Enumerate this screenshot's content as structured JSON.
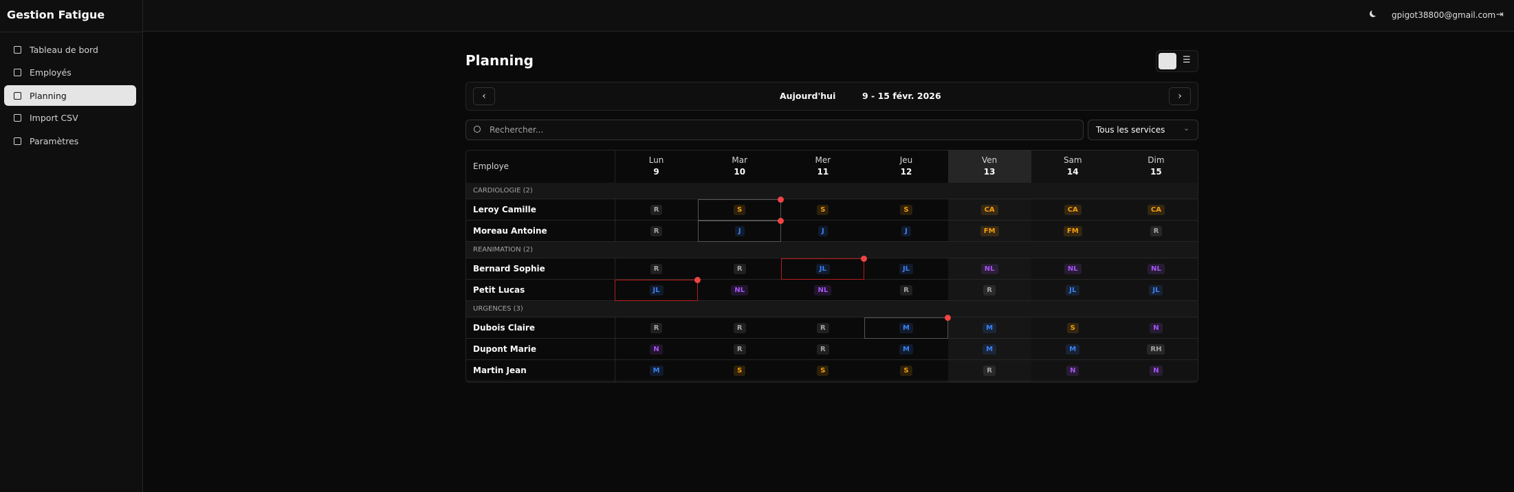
{
  "header": {
    "app_title": "Gestion Fatigue",
    "user_email": "gpigot38800@gmail.com"
  },
  "sidebar": {
    "items": [
      "Tableau de bord",
      "Employés",
      "Planning",
      "Import CSV",
      "Paramètres"
    ],
    "active": 2
  },
  "page": {
    "title": "Planning",
    "today_button": "Aujourd'hui",
    "date_range": "9 - 15 févr. 2026",
    "search_placeholder": "Rechercher...",
    "service_filter": "Tous les services"
  },
  "table": {
    "employee_header": "Employe",
    "days": [
      {
        "name": "Lun",
        "date": "9"
      },
      {
        "name": "Mar",
        "date": "10"
      },
      {
        "name": "Mer",
        "date": "11"
      },
      {
        "name": "Jeu",
        "date": "12"
      },
      {
        "name": "Ven",
        "date": "13"
      },
      {
        "name": "Sam",
        "date": "14"
      },
      {
        "name": "Dim",
        "date": "15"
      }
    ],
    "code_colors": {
      "R": "#a3a3a3",
      "S": "#f59e0b",
      "CA": "#f59e0b",
      "FM": "#f59e0b",
      "J": "#3b82f6",
      "JL": "#3b82f6",
      "M": "#3b82f6",
      "NL": "#a855f7",
      "N": "#a855f7",
      "RH": "#a3a3a3"
    },
    "groups": [
      {
        "label": "CARDIOLOGIE (2)",
        "rows": [
          {
            "name": "Leroy Camille",
            "cells": [
              "R",
              "S",
              "S",
              "S",
              "CA",
              "CA",
              "CA"
            ]
          },
          {
            "name": "Moreau Antoine",
            "cells": [
              "R",
              "J",
              "J",
              "J",
              "FM",
              "FM",
              "R"
            ]
          }
        ]
      },
      {
        "label": "REANIMATION (2)",
        "rows": [
          {
            "name": "Bernard Sophie",
            "cells": [
              "R",
              "R",
              "JL",
              "JL",
              "NL",
              "NL",
              "NL"
            ]
          },
          {
            "name": "Petit Lucas",
            "cells": [
              "JL",
              "NL",
              "NL",
              "R",
              "R",
              "JL",
              "JL"
            ]
          }
        ]
      },
      {
        "label": "URGENCES (3)",
        "rows": [
          {
            "name": "Dubois Claire",
            "cells": [
              "R",
              "R",
              "R",
              "M",
              "M",
              "S",
              "N"
            ]
          },
          {
            "name": "Dupont Marie",
            "cells": [
              "N",
              "R",
              "R",
              "M",
              "M",
              "M",
              "RH"
            ]
          },
          {
            "name": "Martin Jean",
            "cells": [
              "M",
              "S",
              "S",
              "S",
              "R",
              "N",
              "N"
            ]
          }
        ]
      }
    ]
  }
}
